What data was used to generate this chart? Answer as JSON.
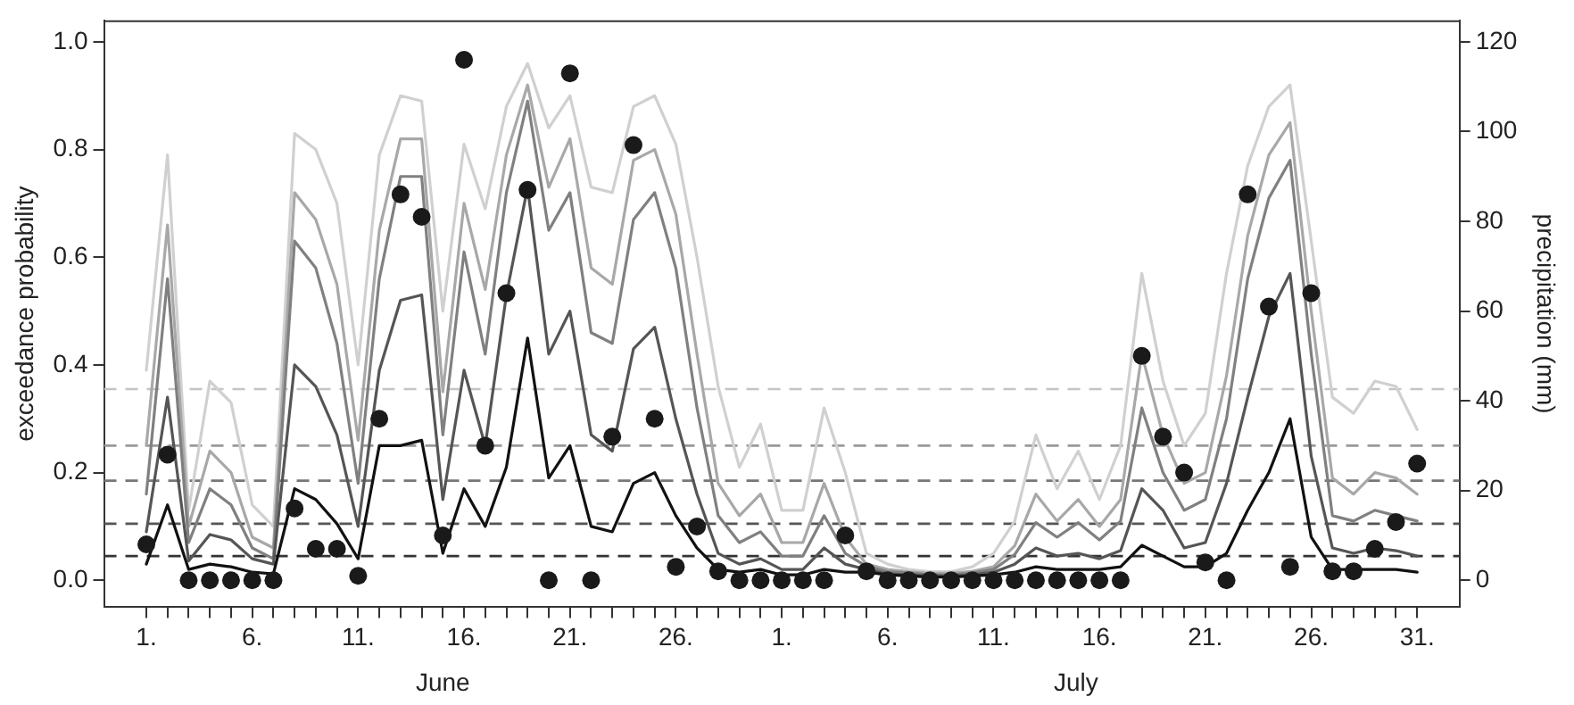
{
  "chart_data": {
    "type": "line",
    "ylabel": "exceedance probability",
    "y2label": "precipitation (mm)",
    "annotations": [
      "June",
      "July"
    ],
    "x": [
      "--06-01",
      "--06-02",
      "--06-03",
      "--06-04",
      "--06-05",
      "--06-06",
      "--06-07",
      "--06-08",
      "--06-09",
      "--06-10",
      "--06-11",
      "--06-12",
      "--06-13",
      "--06-14",
      "--06-15",
      "--06-16",
      "--06-17",
      "--06-18",
      "--06-19",
      "--06-20",
      "--06-21",
      "--06-22",
      "--06-23",
      "--06-24",
      "--06-25",
      "--06-26",
      "--06-27",
      "--06-28",
      "--06-29",
      "--06-30",
      "--07-01",
      "--07-02",
      "--07-03",
      "--07-04",
      "--07-05",
      "--07-06",
      "--07-07",
      "--07-08",
      "--07-09",
      "--07-10",
      "--07-11",
      "--07-12",
      "--07-13",
      "--07-14",
      "--07-15",
      "--07-16",
      "--07-17",
      "--07-18",
      "--07-19",
      "--07-20",
      "--07-21",
      "--07-22",
      "--07-23",
      "--07-24",
      "--07-25",
      "--07-26",
      "--07-27",
      "--07-28",
      "--07-29",
      "--07-30",
      "--07-31"
    ],
    "xlim": [
      "--05-30",
      "--08-02"
    ],
    "xticks": [
      {
        "value": "--06-01",
        "label": "1."
      },
      {
        "value": "--06-02",
        "label": null
      },
      {
        "value": "--06-03",
        "label": null
      },
      {
        "value": "--06-04",
        "label": null
      },
      {
        "value": "--06-05",
        "label": null
      },
      {
        "value": "--06-06",
        "label": "6."
      },
      {
        "value": "--06-07",
        "label": null
      },
      {
        "value": "--06-08",
        "label": null
      },
      {
        "value": "--06-09",
        "label": null
      },
      {
        "value": "--06-10",
        "label": null
      },
      {
        "value": "--06-11",
        "label": "11."
      },
      {
        "value": "--06-12",
        "label": null
      },
      {
        "value": "--06-13",
        "label": null
      },
      {
        "value": "--06-14",
        "label": null
      },
      {
        "value": "--06-15",
        "label": null
      },
      {
        "value": "--06-16",
        "label": "16."
      },
      {
        "value": "--06-17",
        "label": null
      },
      {
        "value": "--06-18",
        "label": null
      },
      {
        "value": "--06-19",
        "label": null
      },
      {
        "value": "--06-20",
        "label": null
      },
      {
        "value": "--06-21",
        "label": "21."
      },
      {
        "value": "--06-22",
        "label": null
      },
      {
        "value": "--06-23",
        "label": null
      },
      {
        "value": "--06-24",
        "label": null
      },
      {
        "value": "--06-25",
        "label": null
      },
      {
        "value": "--06-26",
        "label": "26."
      },
      {
        "value": "--06-27",
        "label": null
      },
      {
        "value": "--06-28",
        "label": null
      },
      {
        "value": "--06-29",
        "label": null
      },
      {
        "value": "--06-30",
        "label": null
      },
      {
        "value": "--07-01",
        "label": "1."
      },
      {
        "value": "--07-02",
        "label": null
      },
      {
        "value": "--07-03",
        "label": null
      },
      {
        "value": "--07-04",
        "label": null
      },
      {
        "value": "--07-05",
        "label": null
      },
      {
        "value": "--07-06",
        "label": "6."
      },
      {
        "value": "--07-07",
        "label": null
      },
      {
        "value": "--07-08",
        "label": null
      },
      {
        "value": "--07-09",
        "label": null
      },
      {
        "value": "--07-10",
        "label": null
      },
      {
        "value": "--07-11",
        "label": "11."
      },
      {
        "value": "--07-12",
        "label": null
      },
      {
        "value": "--07-13",
        "label": null
      },
      {
        "value": "--07-14",
        "label": null
      },
      {
        "value": "--07-15",
        "label": null
      },
      {
        "value": "--07-16",
        "label": "16."
      },
      {
        "value": "--07-17",
        "label": null
      },
      {
        "value": "--07-18",
        "label": null
      },
      {
        "value": "--07-19",
        "label": null
      },
      {
        "value": "--07-20",
        "label": null
      },
      {
        "value": "--07-21",
        "label": "21."
      },
      {
        "value": "--07-22",
        "label": null
      },
      {
        "value": "--07-23",
        "label": null
      },
      {
        "value": "--07-24",
        "label": null
      },
      {
        "value": "--07-25",
        "label": null
      },
      {
        "value": "--07-26",
        "label": "26."
      },
      {
        "value": "--07-27",
        "label": null
      },
      {
        "value": "--07-28",
        "label": null
      },
      {
        "value": "--07-29",
        "label": null
      },
      {
        "value": "--07-30",
        "label": null
      },
      {
        "value": "--07-31",
        "label": "31."
      }
    ],
    "ylim": [
      -0.05,
      1.04
    ],
    "yticks": [
      {
        "value": 0,
        "label": "0.0"
      },
      {
        "value": 0.2,
        "label": "0.2"
      },
      {
        "value": 0.4,
        "label": "0.4"
      },
      {
        "value": 0.6,
        "label": "0.6"
      },
      {
        "value": 0.8,
        "label": "0.8"
      },
      {
        "value": 1,
        "label": "1.0"
      }
    ],
    "y2lim": [
      -6,
      124.8
    ],
    "y2ticks": [
      0,
      20,
      40,
      60,
      80,
      100,
      120
    ],
    "grid": false,
    "legend": false,
    "marker": "none",
    "ref_lines": [
      {
        "axis": "y",
        "value": 0.045,
        "color": "#333333",
        "line_style": "dashed"
      },
      {
        "axis": "y",
        "value": 0.105,
        "color": "#555555",
        "line_style": "dashed"
      },
      {
        "axis": "y",
        "value": 0.185,
        "color": "#777777",
        "line_style": "dashed"
      },
      {
        "axis": "y",
        "value": 0.25,
        "color": "#999999",
        "line_style": "dashed"
      },
      {
        "axis": "y",
        "value": 0.355,
        "color": "#c4c4c4",
        "line_style": "dashed"
      }
    ],
    "series": [
      {
        "color": "#d0d0d0",
        "values": [
          0.39,
          0.79,
          0.13,
          0.37,
          0.33,
          0.14,
          0.1,
          0.83,
          0.8,
          0.7,
          0.4,
          0.79,
          0.9,
          0.89,
          0.5,
          0.81,
          0.69,
          0.88,
          0.96,
          0.84,
          0.9,
          0.73,
          0.72,
          0.88,
          0.9,
          0.81,
          0.6,
          0.36,
          0.21,
          0.29,
          0.13,
          0.13,
          0.32,
          0.2,
          0.05,
          0.03,
          0.02,
          0.016,
          0.016,
          0.025,
          0.05,
          0.11,
          0.27,
          0.17,
          0.24,
          0.15,
          0.25,
          0.57,
          0.37,
          0.25,
          0.31,
          0.57,
          0.77,
          0.88,
          0.92,
          0.63,
          0.34,
          0.31,
          0.37,
          0.36,
          0.28
        ]
      },
      {
        "color": "#a8a8a8",
        "values": [
          0.25,
          0.66,
          0.1,
          0.24,
          0.2,
          0.08,
          0.06,
          0.72,
          0.67,
          0.55,
          0.26,
          0.65,
          0.82,
          0.82,
          0.35,
          0.7,
          0.54,
          0.79,
          0.92,
          0.73,
          0.82,
          0.58,
          0.55,
          0.78,
          0.8,
          0.68,
          0.42,
          0.18,
          0.12,
          0.16,
          0.07,
          0.07,
          0.18,
          0.08,
          0.03,
          0.02,
          0.016,
          0.013,
          0.013,
          0.017,
          0.025,
          0.064,
          0.16,
          0.11,
          0.15,
          0.1,
          0.15,
          0.42,
          0.27,
          0.18,
          0.2,
          0.38,
          0.64,
          0.79,
          0.85,
          0.5,
          0.19,
          0.16,
          0.2,
          0.19,
          0.16
        ]
      },
      {
        "color": "#808080",
        "values": [
          0.16,
          0.56,
          0.07,
          0.17,
          0.14,
          0.06,
          0.04,
          0.63,
          0.58,
          0.44,
          0.18,
          0.56,
          0.75,
          0.75,
          0.27,
          0.61,
          0.42,
          0.72,
          0.89,
          0.65,
          0.72,
          0.46,
          0.44,
          0.67,
          0.72,
          0.58,
          0.32,
          0.12,
          0.07,
          0.09,
          0.045,
          0.045,
          0.12,
          0.05,
          0.026,
          0.016,
          0.014,
          0.01,
          0.01,
          0.014,
          0.02,
          0.048,
          0.107,
          0.08,
          0.107,
          0.075,
          0.11,
          0.32,
          0.2,
          0.13,
          0.15,
          0.3,
          0.56,
          0.71,
          0.78,
          0.42,
          0.12,
          0.11,
          0.13,
          0.12,
          0.11
        ]
      },
      {
        "color": "#555555",
        "values": [
          0.09,
          0.34,
          0.036,
          0.085,
          0.075,
          0.04,
          0.03,
          0.4,
          0.36,
          0.27,
          0.1,
          0.39,
          0.52,
          0.53,
          0.15,
          0.39,
          0.25,
          0.53,
          0.73,
          0.42,
          0.5,
          0.27,
          0.24,
          0.43,
          0.47,
          0.3,
          0.16,
          0.05,
          0.03,
          0.04,
          0.02,
          0.02,
          0.06,
          0.03,
          0.02,
          0.012,
          0.01,
          0.008,
          0.008,
          0.01,
          0.015,
          0.03,
          0.06,
          0.045,
          0.05,
          0.04,
          0.055,
          0.17,
          0.13,
          0.06,
          0.07,
          0.18,
          0.34,
          0.49,
          0.57,
          0.23,
          0.06,
          0.05,
          0.06,
          0.055,
          0.045
        ]
      },
      {
        "color": "#111111",
        "values": [
          0.03,
          0.14,
          0.02,
          0.03,
          0.025,
          0.015,
          0.012,
          0.17,
          0.15,
          0.105,
          0.04,
          0.25,
          0.25,
          0.26,
          0.05,
          0.17,
          0.1,
          0.21,
          0.45,
          0.19,
          0.25,
          0.1,
          0.09,
          0.18,
          0.2,
          0.12,
          0.06,
          0.02,
          0.015,
          0.02,
          0.01,
          0.01,
          0.02,
          0.015,
          0.015,
          0.01,
          0.008,
          0.006,
          0.006,
          0.008,
          0.01,
          0.015,
          0.025,
          0.02,
          0.02,
          0.02,
          0.025,
          0.065,
          0.045,
          0.025,
          0.025,
          0.05,
          0.13,
          0.2,
          0.3,
          0.08,
          0.02,
          0.02,
          0.02,
          0.02,
          0.015
        ]
      },
      {
        "type": "scatter",
        "axis": "y2",
        "marker": "circle",
        "color": "#1a1a1a",
        "values": [
          8,
          28,
          0,
          0,
          0,
          0,
          0,
          16,
          7,
          7,
          1,
          36,
          86,
          81,
          10,
          116,
          30,
          64,
          87,
          0,
          113,
          0,
          32,
          97,
          36,
          3,
          12,
          2,
          0,
          0,
          0,
          0,
          0,
          10,
          2,
          0,
          0,
          0,
          0,
          0,
          0,
          0,
          0,
          0,
          0,
          0,
          0,
          50,
          32,
          24,
          4,
          0,
          86,
          61,
          3,
          64,
          2,
          2,
          7,
          13,
          26
        ]
      }
    ]
  }
}
